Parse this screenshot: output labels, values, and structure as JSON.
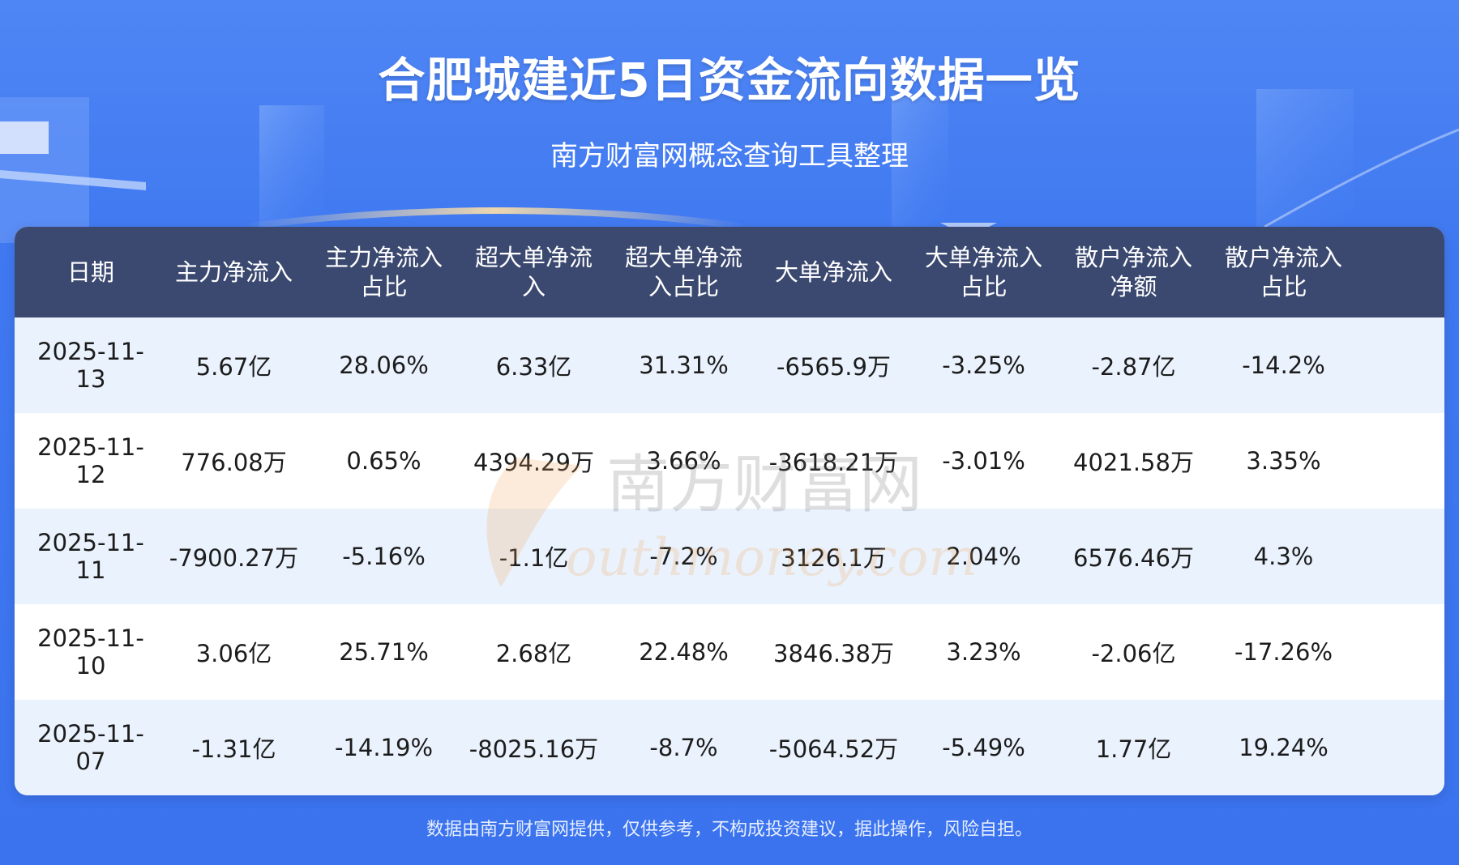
{
  "header": {
    "title": "合肥城建近5日资金流向数据一览",
    "subtitle": "南方财富网概念查询工具整理"
  },
  "table": {
    "columns": [
      [
        "日期"
      ],
      [
        "主力净流入"
      ],
      [
        "主力净流入",
        "占比"
      ],
      [
        "超大单净流",
        "入"
      ],
      [
        "超大单净流",
        "入占比"
      ],
      [
        "大单净流入"
      ],
      [
        "大单净流入",
        "占比"
      ],
      [
        "散户净流入",
        "净额"
      ],
      [
        "散户净流入",
        "占比"
      ]
    ],
    "rows": [
      [
        "2025-11-13",
        "5.67亿",
        "28.06%",
        "6.33亿",
        "31.31%",
        "-6565.9万",
        "-3.25%",
        "-2.87亿",
        "-14.2%"
      ],
      [
        "2025-11-12",
        "776.08万",
        "0.65%",
        "4394.29万",
        "3.66%",
        "-3618.21万",
        "-3.01%",
        "4021.58万",
        "3.35%"
      ],
      [
        "2025-11-11",
        "-7900.27万",
        "-5.16%",
        "-1.1亿",
        "-7.2%",
        "3126.1万",
        "2.04%",
        "6576.46万",
        "4.3%"
      ],
      [
        "2025-11-10",
        "3.06亿",
        "25.71%",
        "2.68亿",
        "22.48%",
        "3846.38万",
        "3.23%",
        "-2.06亿",
        "-17.26%"
      ],
      [
        "2025-11-07",
        "-1.31亿",
        "-14.19%",
        "-8025.16万",
        "-8.7%",
        "-5064.52万",
        "-5.49%",
        "1.77亿",
        "19.24%"
      ]
    ]
  },
  "watermark": {
    "line1": "南方财富网",
    "line2": "outhmoney.com"
  },
  "footer": {
    "disclaimer": "数据由南方财富网提供，仅供参考，不构成投资建议，据此操作，风险自担。"
  },
  "chart_data": {
    "type": "table",
    "title": "合肥城建近5日资金流向数据一览",
    "subtitle": "南方财富网概念查询工具整理",
    "columns": [
      "日期",
      "主力净流入",
      "主力净流入占比",
      "超大单净流入",
      "超大单净流入占比",
      "大单净流入",
      "大单净流入占比",
      "散户净流入净额",
      "散户净流入占比"
    ],
    "rows": [
      [
        "2025-11-13",
        "5.67亿",
        "28.06%",
        "6.33亿",
        "31.31%",
        "-6565.9万",
        "-3.25%",
        "-2.87亿",
        "-14.2%"
      ],
      [
        "2025-11-12",
        "776.08万",
        "0.65%",
        "4394.29万",
        "3.66%",
        "-3618.21万",
        "-3.01%",
        "4021.58万",
        "3.35%"
      ],
      [
        "2025-11-11",
        "-7900.27万",
        "-5.16%",
        "-1.1亿",
        "-7.2%",
        "3126.1万",
        "2.04%",
        "6576.46万",
        "4.3%"
      ],
      [
        "2025-11-10",
        "3.06亿",
        "25.71%",
        "2.68亿",
        "22.48%",
        "3846.38万",
        "3.23%",
        "-2.06亿",
        "-17.26%"
      ],
      [
        "2025-11-07",
        "-1.31亿",
        "-14.19%",
        "-8025.16万",
        "-8.7%",
        "-5064.52万",
        "-5.49%",
        "1.77亿",
        "19.24%"
      ]
    ]
  },
  "colors": {
    "background": "#3f78f0",
    "header_row": "#3b4970",
    "row_alt": "#eaf2fd",
    "row_plain": "#ffffff"
  }
}
